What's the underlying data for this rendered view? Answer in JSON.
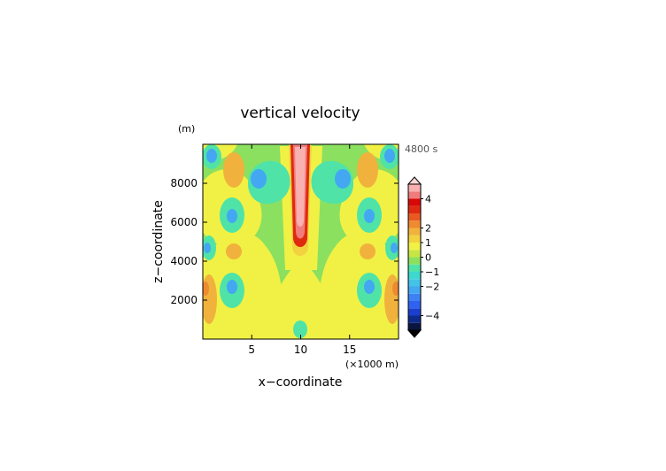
{
  "chart_data": {
    "type": "heatmap",
    "title": "vertical velocity",
    "xlabel": "x−coordinate",
    "ylabel": "z−coordinate",
    "y_unit": "(m)",
    "x_unit": "(×1000 m)",
    "time_label": "4800 s",
    "x_ticks": [
      "5",
      "10",
      "15"
    ],
    "x_tick_values": [
      5,
      10,
      15
    ],
    "y_ticks": [
      "2000",
      "4000",
      "6000",
      "8000"
    ],
    "y_tick_values": [
      2000,
      4000,
      6000,
      8000
    ],
    "xlim": [
      0,
      20
    ],
    "ylim": [
      0,
      10000
    ],
    "colorbar": {
      "levels": [
        -5,
        -4.5,
        -4,
        -3.5,
        -3,
        -2.5,
        -2,
        -1.5,
        -1,
        -0.5,
        0,
        0.5,
        1,
        1.5,
        2,
        2.5,
        3,
        3.5,
        4,
        4.5,
        5
      ],
      "tick_labels": [
        "4",
        "2",
        "1",
        "0",
        "−1",
        "−2",
        "−4"
      ],
      "tick_values": [
        4,
        2,
        1,
        0,
        -1,
        -2,
        -4
      ],
      "colors": [
        "#0a1540",
        "#0e2a8a",
        "#1a3fcf",
        "#2f62f0",
        "#3d82f5",
        "#43a7f2",
        "#45c2e8",
        "#3fd8cf",
        "#4fe3a8",
        "#8be060",
        "#c7e645",
        "#f1f145",
        "#f2d23e",
        "#f0b23c",
        "#ee8a30",
        "#e85a22",
        "#e02a10",
        "#d80808",
        "#f07c7c",
        "#f8b0b0"
      ],
      "extend": "both"
    },
    "grid": "off"
  }
}
